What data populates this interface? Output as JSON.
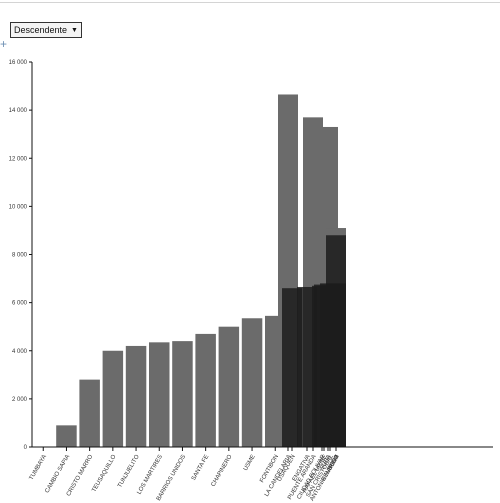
{
  "controls": {
    "sort_label": "Descendente",
    "sort_arrow": "▼",
    "plus_glyph": "+"
  },
  "colors": {
    "bar_fill": "#6b6b6b",
    "bar_overlap": "#1c1c1c",
    "axis": "#111111",
    "text": "#333333"
  },
  "chart_data": {
    "type": "bar",
    "title": "",
    "xlabel": "",
    "ylabel": "",
    "ylim": [
      0,
      16000
    ],
    "yticks": [
      0,
      2000,
      4000,
      6000,
      8000,
      10000,
      12000,
      14000,
      16000
    ],
    "ytick_labels": [
      "0",
      "2 000",
      "4 000",
      "6 000",
      "8 000",
      "10 000",
      "12 000",
      "14 000",
      "16 000"
    ],
    "grid": false,
    "legend": "none",
    "categories": [
      "TUMBAYA",
      "CAMBIO SAPIA",
      "CRISTO MARRO",
      "TEUSAQUILLO",
      "TUNJUELITO",
      "LOS MARTIRES",
      "BARRIOS UNIDOS",
      "SANTA FE",
      "CHAPINERO",
      "USME",
      "FONTIBON",
      "LA CANDELARIA",
      "PUENTE ARANDA",
      "SUBA",
      "KENNEDY",
      "BOSA",
      "USAQUEN",
      "ENGATIVA",
      "CIUDAD BOLIVAR",
      "RAFAEL URIBE",
      "SAN CRISTOBAL",
      "ANTONIO NARIÑO"
    ],
    "values": [
      0,
      900,
      2800,
      4000,
      4200,
      4350,
      4400,
      4700,
      5000,
      5350,
      5450,
      14650,
      13700,
      13300,
      9100,
      8800,
      6600,
      6650,
      6700,
      6750,
      6800,
      6800
    ]
  }
}
